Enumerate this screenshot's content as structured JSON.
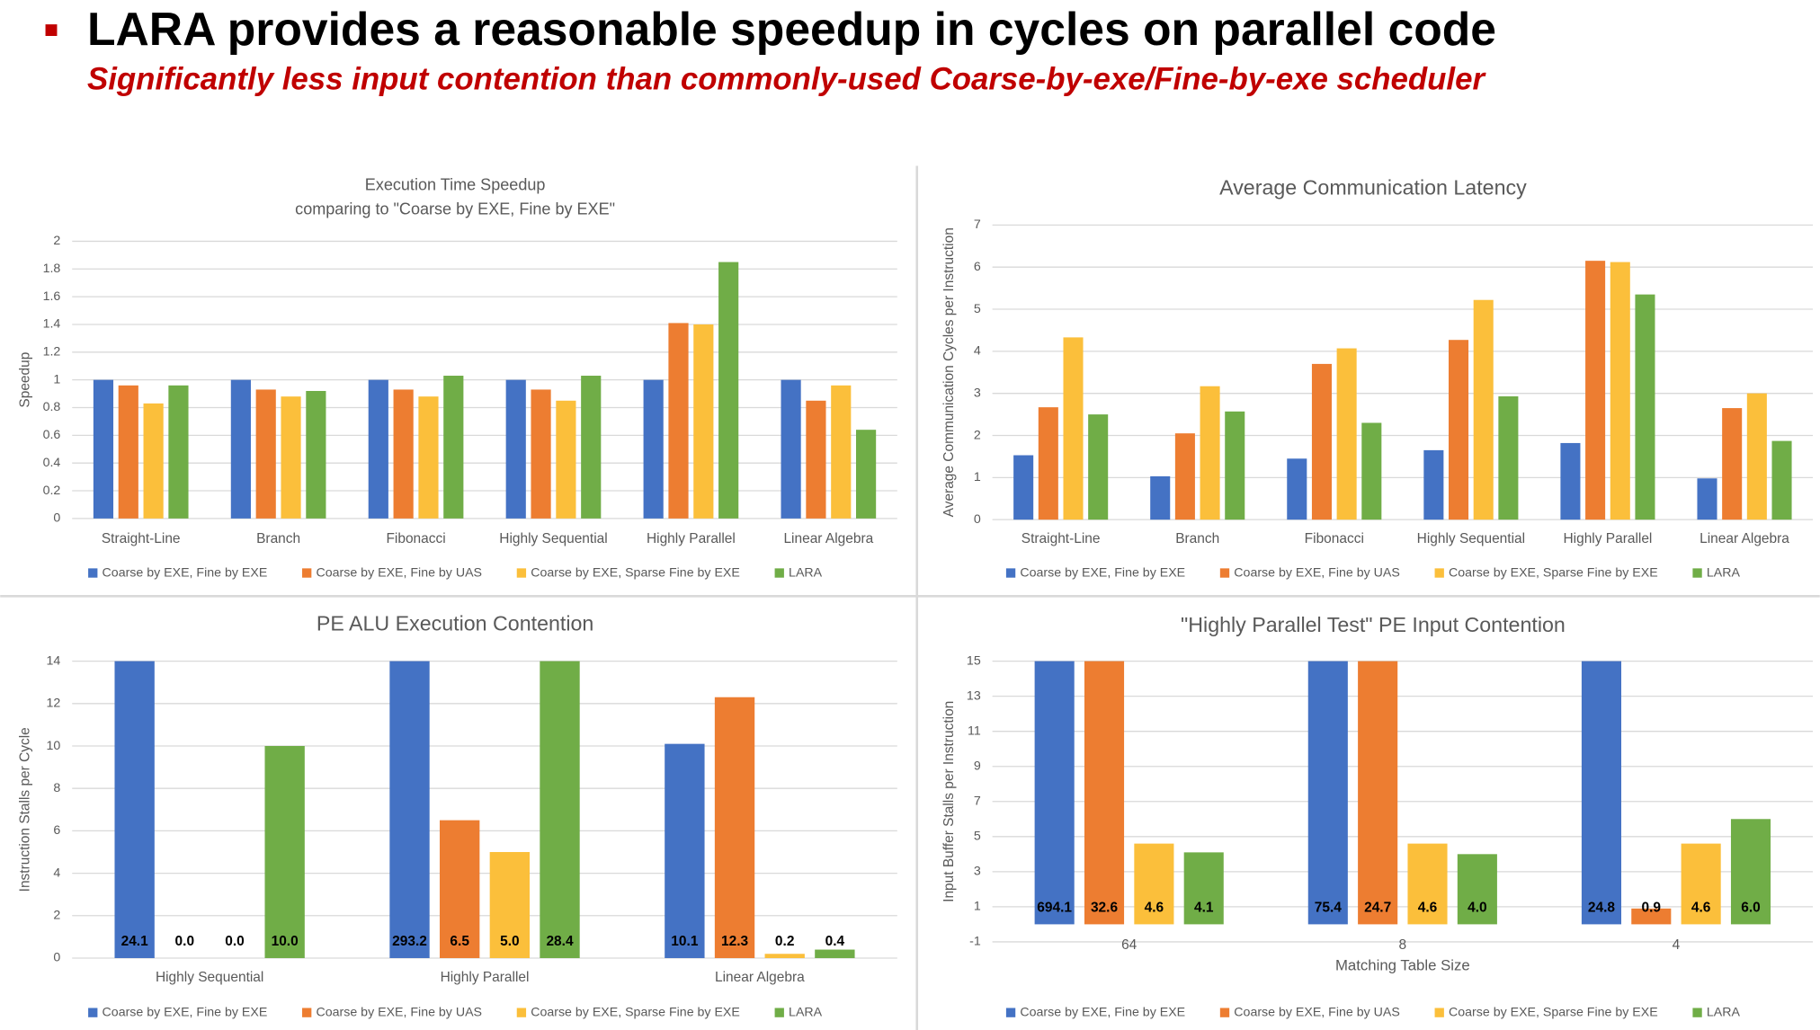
{
  "header": {
    "title": "LARA provides a reasonable speedup in cycles on parallel code",
    "subtitle": "Significantly less input contention than commonly-used Coarse-by-exe/Fine-by-exe scheduler"
  },
  "chart_data": [
    {
      "type": "bar",
      "title": "Execution Time Speedup",
      "subtitle": "comparing to \"Coarse by EXE, Fine by EXE\"",
      "ylabel": "Speedup",
      "categories": [
        "Straight-Line",
        "Branch",
        "Fibonacci",
        "Highly Sequential",
        "Highly Parallel",
        "Linear Algebra"
      ],
      "series": [
        {
          "name": "Coarse by EXE, Fine by EXE",
          "color": "#4472c4",
          "values": [
            1,
            1,
            1,
            1,
            1,
            1
          ]
        },
        {
          "name": "Coarse by EXE, Fine by UAS",
          "color": "#ed7d31",
          "values": [
            0.96,
            0.93,
            0.93,
            0.93,
            1.41,
            0.85
          ]
        },
        {
          "name": "Coarse by EXE, Sparse Fine by EXE",
          "color": "#fbbf3b",
          "values": [
            0.83,
            0.88,
            0.88,
            0.85,
            1.4,
            0.96
          ]
        },
        {
          "name": "LARA",
          "color": "#70ad47",
          "values": [
            0.96,
            0.92,
            1.03,
            1.03,
            1.85,
            0.64
          ]
        }
      ],
      "ylim": [
        0,
        2
      ],
      "yticks": [
        0,
        0.2,
        0.4,
        0.6,
        0.8,
        1,
        1.2,
        1.4,
        1.6,
        1.8,
        2
      ],
      "grid": true,
      "legend": "bottom"
    },
    {
      "type": "bar",
      "title": "Average Communication Latency",
      "ylabel": "Average Communication Cycles per Instruction",
      "categories": [
        "Straight-Line",
        "Branch",
        "Fibonacci",
        "Highly Sequential",
        "Highly Parallel",
        "Linear Algebra"
      ],
      "series": [
        {
          "name": "Coarse by EXE, Fine by EXE",
          "color": "#4472c4",
          "values": [
            1.53,
            1.03,
            1.45,
            1.65,
            1.82,
            0.98
          ]
        },
        {
          "name": "Coarse by EXE, Fine by UAS",
          "color": "#ed7d31",
          "values": [
            2.67,
            2.05,
            3.7,
            4.27,
            6.15,
            2.65
          ]
        },
        {
          "name": "Coarse by EXE, Sparse Fine by EXE",
          "color": "#fbbf3b",
          "values": [
            4.33,
            3.17,
            4.07,
            5.22,
            6.12,
            3.0
          ]
        },
        {
          "name": "LARA",
          "color": "#70ad47",
          "values": [
            2.5,
            2.57,
            2.3,
            2.93,
            5.35,
            1.87
          ]
        }
      ],
      "ylim": [
        0,
        7
      ],
      "yticks": [
        0,
        1,
        2,
        3,
        4,
        5,
        6,
        7
      ],
      "grid": true,
      "legend": "bottom"
    },
    {
      "type": "bar",
      "title": "PE ALU Execution Contention",
      "ylabel": "Instruction Stalls per Cycle",
      "categories": [
        "Highly Sequential",
        "Highly Parallel",
        "Linear Algebra"
      ],
      "series": [
        {
          "name": "Coarse by EXE, Fine by EXE",
          "color": "#4472c4",
          "values": [
            24.1,
            293.2,
            10.1
          ],
          "value_labels": [
            "24.1",
            "293.2",
            "10.1"
          ]
        },
        {
          "name": "Coarse by EXE, Fine by UAS",
          "color": "#ed7d31",
          "values": [
            0,
            6.5,
            12.3
          ],
          "value_labels": [
            "0.0",
            "6.5",
            "12.3"
          ]
        },
        {
          "name": "Coarse by EXE, Sparse Fine by EXE",
          "color": "#fbbf3b",
          "values": [
            0,
            5,
            0.2
          ],
          "value_labels": [
            "0.0",
            "5.0",
            "0.2"
          ]
        },
        {
          "name": "LARA",
          "color": "#70ad47",
          "values": [
            10,
            28.4,
            0.4
          ],
          "value_labels": [
            "10.0",
            "28.4",
            "0.4"
          ]
        }
      ],
      "ylim": [
        0,
        14
      ],
      "yticks": [
        0,
        2,
        4,
        6,
        8,
        10,
        12,
        14
      ],
      "grid": true,
      "legend": "bottom"
    },
    {
      "type": "bar",
      "title": "\"Highly Parallel Test\" PE Input Contention",
      "ylabel": "Input Buffer Stalls per Instruction",
      "xlabel": "Matching Table Size",
      "categories": [
        "64",
        "8",
        "4"
      ],
      "series": [
        {
          "name": "Coarse by EXE, Fine by EXE",
          "color": "#4472c4",
          "values": [
            694.1,
            75.4,
            24.8
          ],
          "value_labels": [
            "694.1",
            "75.4",
            "24.8"
          ]
        },
        {
          "name": "Coarse by EXE, Fine by UAS",
          "color": "#ed7d31",
          "values": [
            32.6,
            24.7,
            0.9
          ],
          "value_labels": [
            "32.6",
            "24.7",
            "0.9"
          ]
        },
        {
          "name": "Coarse by EXE, Sparse Fine by EXE",
          "color": "#fbbf3b",
          "values": [
            4.6,
            4.6,
            4.6
          ],
          "value_labels": [
            "4.6",
            "4.6",
            "4.6"
          ]
        },
        {
          "name": "LARA",
          "color": "#70ad47",
          "values": [
            4.1,
            4.0,
            6.0
          ],
          "value_labels": [
            "4.1",
            "4.0",
            "6.0"
          ]
        }
      ],
      "ylim": [
        -1,
        15
      ],
      "yticks": [
        -1,
        1,
        3,
        5,
        7,
        9,
        11,
        13,
        15
      ],
      "grid": true,
      "legend": "bottom"
    }
  ]
}
